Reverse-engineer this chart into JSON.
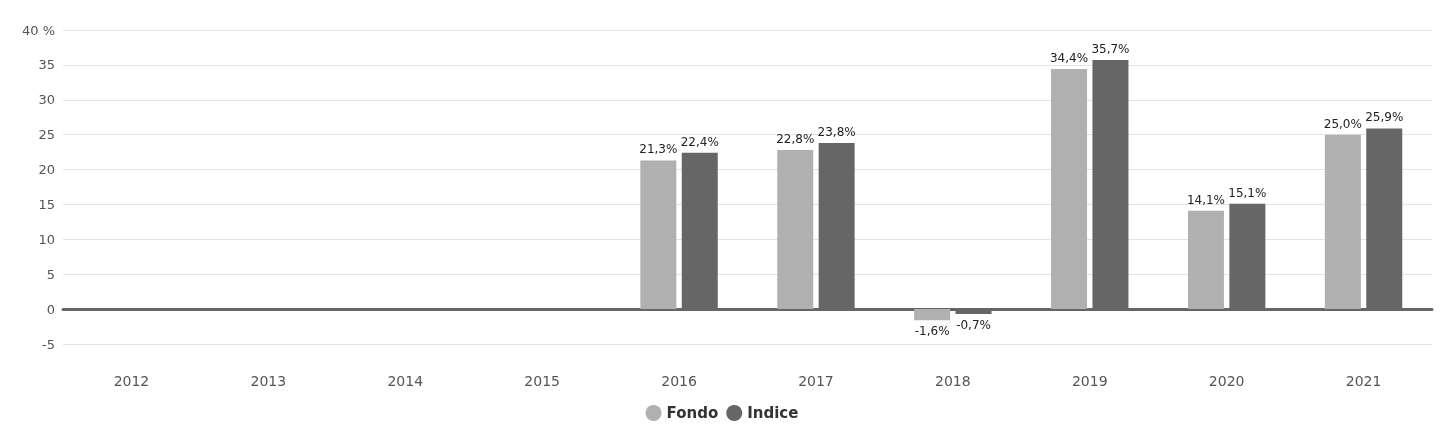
{
  "chart_data": {
    "type": "bar",
    "categories": [
      "2012",
      "2013",
      "2014",
      "2015",
      "2016",
      "2017",
      "2018",
      "2019",
      "2020",
      "2021"
    ],
    "series": [
      {
        "name": "Fondo",
        "color": "#b0b0b0",
        "values": [
          null,
          null,
          null,
          null,
          21.3,
          22.8,
          -1.6,
          34.4,
          14.1,
          25.0
        ],
        "value_labels": [
          null,
          null,
          null,
          null,
          "21,3%",
          "22,8%",
          "-1,6%",
          "34,4%",
          "14,1%",
          "25,0%"
        ]
      },
      {
        "name": "Indice",
        "color": "#666666",
        "values": [
          null,
          null,
          null,
          null,
          22.4,
          23.8,
          -0.7,
          35.7,
          15.1,
          25.9
        ],
        "value_labels": [
          null,
          null,
          null,
          null,
          "22,4%",
          "23,8%",
          "-0,7%",
          "35,7%",
          "15,1%",
          "25,9%"
        ]
      }
    ],
    "ylim": [
      -5,
      40
    ],
    "yticks": [
      -5,
      0,
      5,
      10,
      15,
      20,
      25,
      30,
      35,
      {
        "value": 40,
        "label": "40 %"
      }
    ],
    "grid": "y",
    "legend": "bottom"
  }
}
